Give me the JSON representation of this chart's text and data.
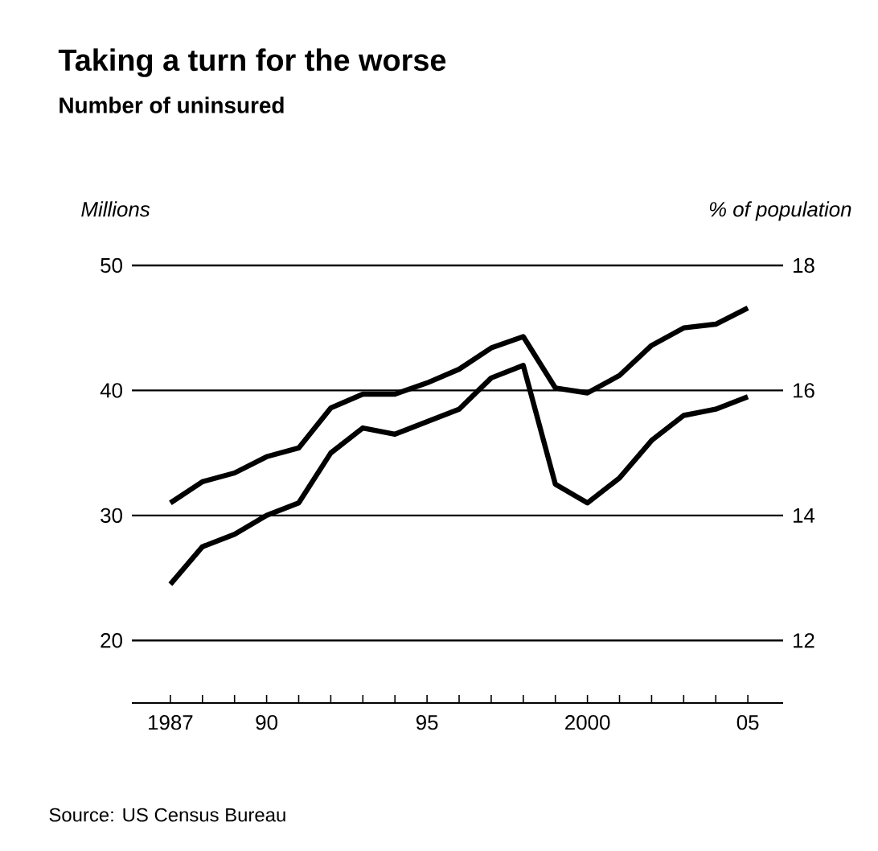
{
  "chart_data": {
    "type": "line",
    "title": "Taking a turn for the worse",
    "subtitle": "Number of uninsured",
    "ylabel": "Millions",
    "y2label": "% of population",
    "annotations": [
      "Source: US Census Bureau"
    ],
    "x": [
      1987,
      1988,
      1989,
      1990,
      1991,
      1992,
      1993,
      1994,
      1995,
      1996,
      1997,
      1998,
      1999,
      2000,
      2001,
      2002,
      2003,
      2004,
      2005
    ],
    "series": [
      {
        "color": "#000000",
        "values": [
          31.0,
          32.7,
          33.4,
          34.7,
          35.4,
          38.6,
          39.7,
          39.7,
          40.6,
          41.7,
          43.4,
          44.3,
          40.2,
          39.8,
          41.2,
          43.6,
          45.0,
          45.3,
          46.6
        ]
      },
      {
        "color": "#000000",
        "axis": "y2",
        "values": [
          12.9,
          13.5,
          13.7,
          14.0,
          14.2,
          15.0,
          15.4,
          15.3,
          15.5,
          15.7,
          16.2,
          16.4,
          14.5,
          14.2,
          14.6,
          15.2,
          15.6,
          15.7,
          15.9
        ]
      }
    ],
    "xlim": [
      1985.8,
      2006.1
    ],
    "ylim": [
      15,
      50
    ],
    "y2lim": [
      11,
      18
    ],
    "xticks": [
      {
        "value": 1987,
        "label": "1987"
      },
      {
        "value": 1988,
        "label": null
      },
      {
        "value": 1989,
        "label": null
      },
      {
        "value": 1990,
        "label": "90"
      },
      {
        "value": 1991,
        "label": null
      },
      {
        "value": 1992,
        "label": null
      },
      {
        "value": 1993,
        "label": null
      },
      {
        "value": 1994,
        "label": null
      },
      {
        "value": 1995,
        "label": "95"
      },
      {
        "value": 1996,
        "label": null
      },
      {
        "value": 1997,
        "label": null
      },
      {
        "value": 1998,
        "label": null
      },
      {
        "value": 1999,
        "label": null
      },
      {
        "value": 2000,
        "label": "2000"
      },
      {
        "value": 2001,
        "label": null
      },
      {
        "value": 2002,
        "label": null
      },
      {
        "value": 2003,
        "label": null
      },
      {
        "value": 2004,
        "label": null
      },
      {
        "value": 2005,
        "label": "05"
      }
    ],
    "yticks": [
      20,
      30,
      40,
      50
    ],
    "y2ticks": [
      12,
      14,
      16,
      18
    ],
    "grid": "y",
    "marker": "none",
    "line_style": "solid"
  }
}
